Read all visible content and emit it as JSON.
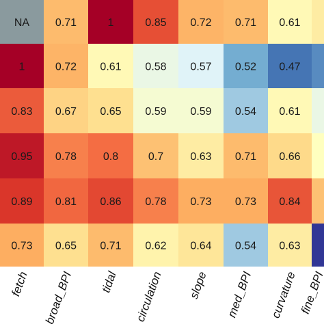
{
  "chart_data": {
    "type": "heatmap",
    "x_tick_labels": [
      "fetch",
      "broad_BPI",
      "tidal",
      "circulation",
      "slope",
      "med_BPI",
      "curvature",
      "fine_BPI"
    ],
    "values": [
      [
        null,
        0.71,
        1,
        0.85,
        0.72,
        0.71,
        0.61,
        0.63
      ],
      [
        1,
        0.72,
        0.61,
        0.58,
        0.57,
        0.52,
        0.47,
        0.49
      ],
      [
        0.83,
        0.67,
        0.65,
        0.59,
        0.59,
        0.54,
        0.61,
        0.58
      ],
      [
        0.95,
        0.78,
        0.8,
        0.7,
        0.63,
        0.71,
        0.66,
        0.6
      ],
      [
        0.89,
        0.81,
        0.86,
        0.78,
        0.73,
        0.73,
        0.84,
        0.7
      ],
      [
        0.73,
        0.65,
        0.71,
        0.62,
        0.64,
        0.54,
        0.63,
        0.45
      ]
    ],
    "cell_labels": [
      [
        "NA",
        "0.71",
        "1",
        "0.85",
        "0.72",
        "0.71",
        "0.61",
        ""
      ],
      [
        "1",
        "0.72",
        "0.61",
        "0.58",
        "0.57",
        "0.52",
        "0.47",
        ""
      ],
      [
        "0.83",
        "0.67",
        "0.65",
        "0.59",
        "0.59",
        "0.54",
        "0.61",
        ""
      ],
      [
        "0.95",
        "0.78",
        "0.8",
        "0.7",
        "0.63",
        "0.71",
        "0.66",
        ""
      ],
      [
        "0.89",
        "0.81",
        "0.86",
        "0.78",
        "0.73",
        "0.73",
        "0.84",
        ""
      ],
      [
        "0.73",
        "0.65",
        "0.71",
        "0.62",
        "0.64",
        "0.54",
        "0.63",
        ""
      ]
    ],
    "na_color": "#8a9a9e",
    "color_scale": "RdYlBu (reversed): high = dark red, low = blue",
    "legend": "none"
  }
}
